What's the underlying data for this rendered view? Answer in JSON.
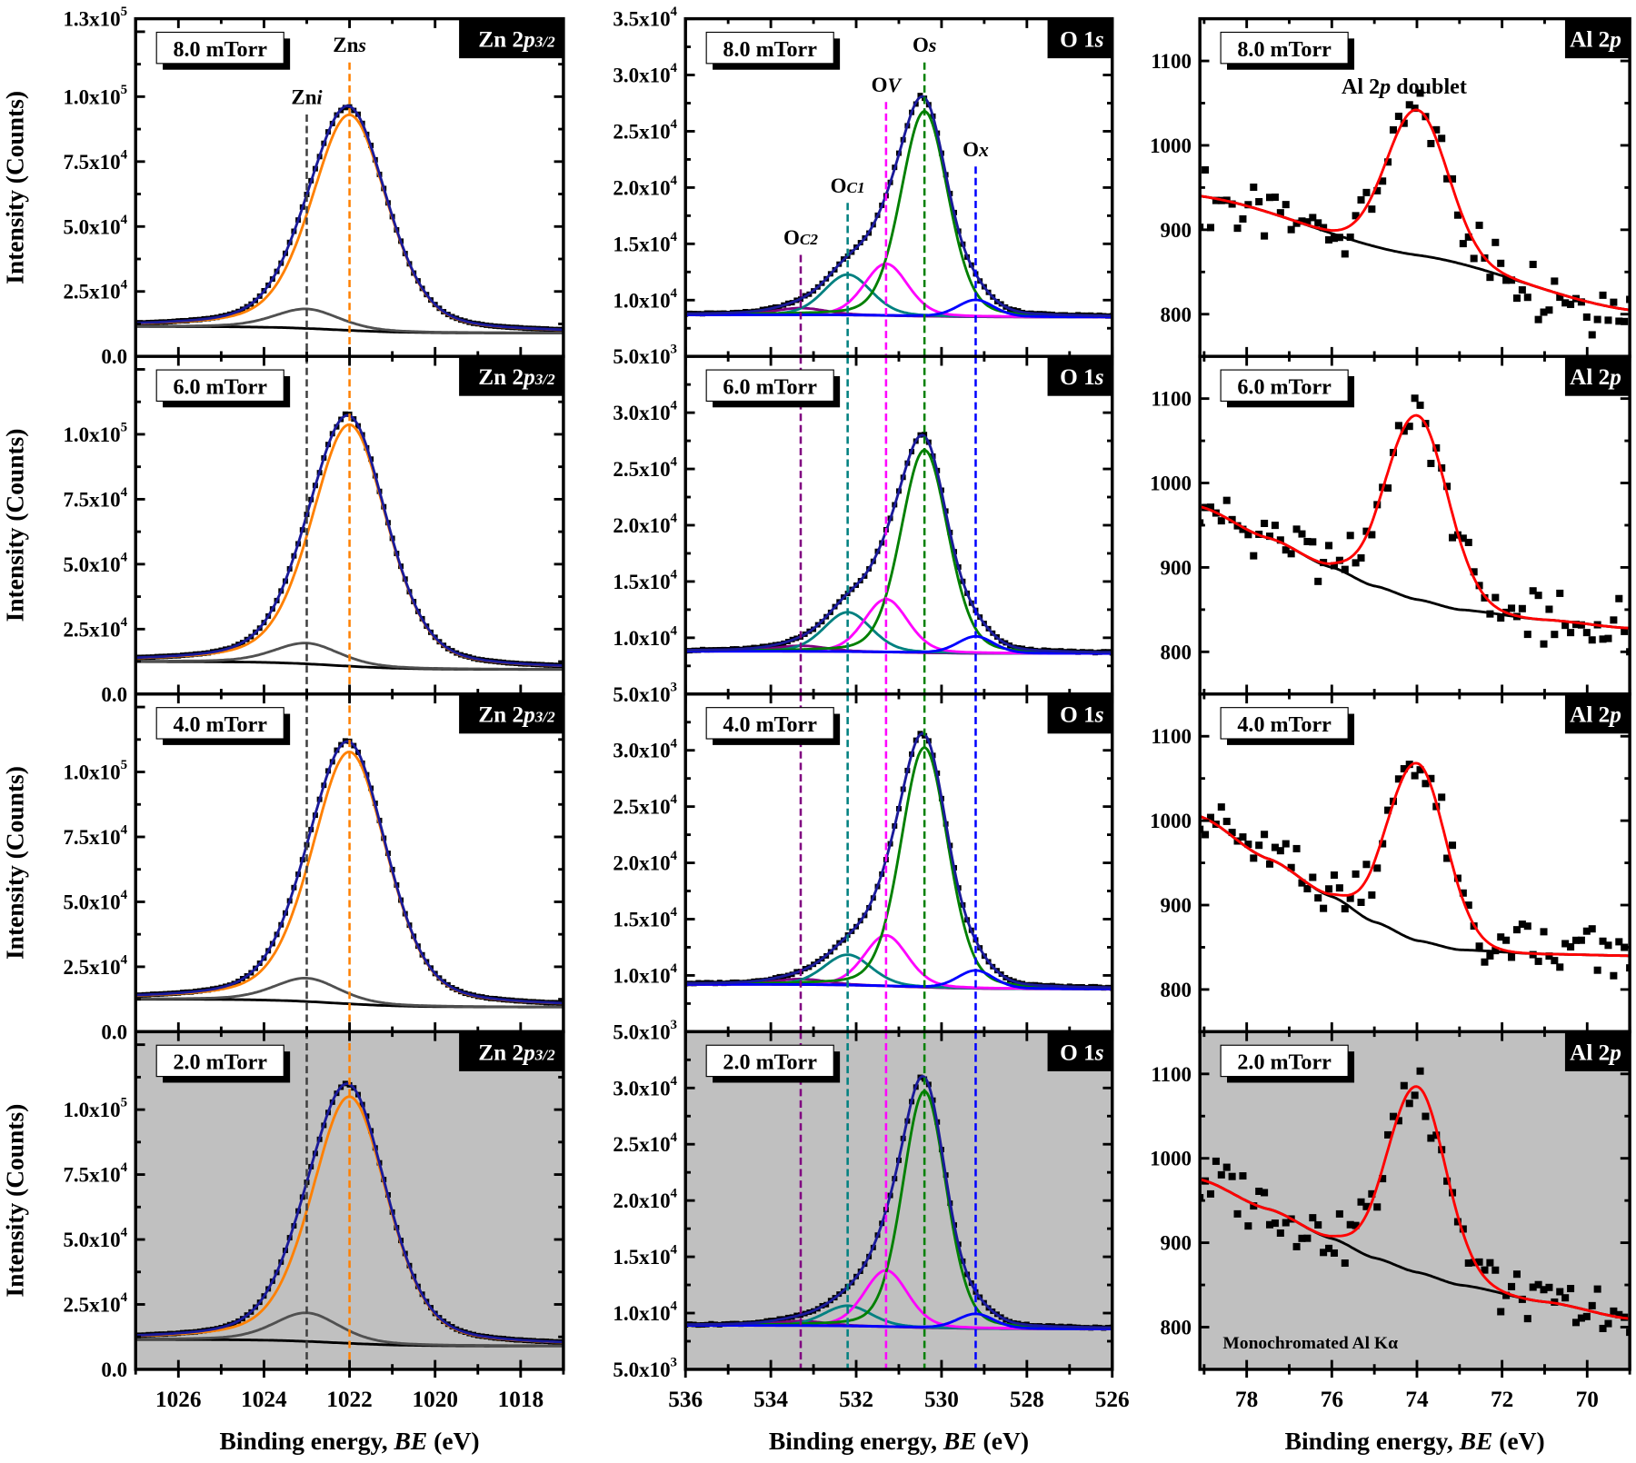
{
  "chart_data": [
    {
      "type": "line",
      "column": "Zn",
      "title": {
        "main": "Zn 2",
        "italic": "p",
        "sub": "3/2"
      },
      "xlabel": {
        "pre": "Binding energy, ",
        "italic": "BE",
        "post": " (eV)"
      },
      "ylabel": "Intensity (Counts)",
      "xlim": [
        1027,
        1017
      ],
      "ylim": [
        0,
        130000
      ],
      "xticks": [
        1026,
        1024,
        1022,
        1020,
        1018
      ],
      "yticks": [
        {
          "v": 0,
          "m": "0.0",
          "e": ""
        },
        {
          "v": 25000,
          "m": "2.5x10",
          "e": "4"
        },
        {
          "v": 50000,
          "m": "5.0x10",
          "e": "4"
        },
        {
          "v": 75000,
          "m": "7.5x10",
          "e": "4"
        },
        {
          "v": 100000,
          "m": "1.0x10",
          "e": "5"
        }
      ],
      "ytop_label": {
        "m": "1.3x10",
        "e": "5"
      },
      "colors": {
        "envelope": "#1a1a9a",
        "data": "#000000",
        "background": "#000000"
      },
      "peak_markers": [
        {
          "main": "Zn",
          "sub": "i",
          "center": 1023.0,
          "color": "#404040"
        },
        {
          "main": "Zn",
          "sub": "s",
          "center": 1022.0,
          "color": "#ff8000"
        }
      ],
      "panels": [
        {
          "pressure": "8.0 mTorr",
          "bg": [
            11500,
            9000
          ],
          "peaks": [
            {
              "center": 1023.0,
              "height": 7500,
              "fwhm": 1.8,
              "color": "#505050"
            },
            {
              "center": 1022.0,
              "height": 83000,
              "fwhm": 2.1,
              "color": "#ff8000"
            }
          ]
        },
        {
          "pressure": "6.0 mTorr",
          "bg": [
            12500,
            9500
          ],
          "peaks": [
            {
              "center": 1023.0,
              "height": 8000,
              "fwhm": 1.8,
              "color": "#505050"
            },
            {
              "center": 1022.0,
              "height": 93000,
              "fwhm": 2.1,
              "color": "#ff8000"
            }
          ]
        },
        {
          "pressure": "4.0 mTorr",
          "bg": [
            12500,
            9500
          ],
          "peaks": [
            {
              "center": 1023.0,
              "height": 9000,
              "fwhm": 1.8,
              "color": "#505050"
            },
            {
              "center": 1022.0,
              "height": 97000,
              "fwhm": 2.1,
              "color": "#ff8000"
            }
          ]
        },
        {
          "pressure": "2.0 mTorr",
          "bg": [
            11500,
            9000
          ],
          "peaks": [
            {
              "center": 1023.0,
              "height": 11000,
              "fwhm": 1.8,
              "color": "#505050"
            },
            {
              "center": 1022.0,
              "height": 95000,
              "fwhm": 2.1,
              "color": "#ff8000"
            }
          ],
          "shaded": true
        }
      ]
    },
    {
      "type": "line",
      "column": "O",
      "title": {
        "main": "O 1",
        "italic": "s",
        "sub": ""
      },
      "xlabel": {
        "pre": "Binding energy, ",
        "italic": "BE",
        "post": " (eV)"
      },
      "xlim": [
        536,
        526
      ],
      "ylim": [
        5000,
        35000
      ],
      "xticks": [
        536,
        534,
        532,
        530,
        528,
        526
      ],
      "yticks": [
        {
          "v": 5000,
          "m": "5.0x10",
          "e": "3"
        },
        {
          "v": 10000,
          "m": "1.0x10",
          "e": "4"
        },
        {
          "v": 15000,
          "m": "1.5x10",
          "e": "4"
        },
        {
          "v": 20000,
          "m": "2.0x10",
          "e": "4"
        },
        {
          "v": 25000,
          "m": "2.5x10",
          "e": "4"
        },
        {
          "v": 30000,
          "m": "3.0x10",
          "e": "4"
        }
      ],
      "ytop_label": {
        "m": "3.5x10",
        "e": "4"
      },
      "colors": {
        "envelope": "#1a1a9a",
        "data": "#000000",
        "background": "#800080"
      },
      "peak_markers": [
        {
          "main": "O",
          "sub": "C2",
          "center": 533.3,
          "color": "#800080"
        },
        {
          "main": "O",
          "sub": "C1",
          "center": 532.2,
          "color": "#008080"
        },
        {
          "main": "O",
          "sub": "V",
          "center": 531.3,
          "color": "#ff00ff"
        },
        {
          "main": "O",
          "sub": "s",
          "center": 530.4,
          "color": "#008000"
        },
        {
          "main": "O",
          "sub": "x",
          "center": 529.2,
          "color": "#0000ff"
        }
      ],
      "panels": [
        {
          "pressure": "8.0 mTorr",
          "bg": [
            8700,
            8500
          ],
          "peaks": [
            {
              "center": 533.3,
              "height": 600,
              "fwhm": 1.4,
              "color": "#800080"
            },
            {
              "center": 532.2,
              "height": 3600,
              "fwhm": 1.3,
              "color": "#008080"
            },
            {
              "center": 531.3,
              "height": 4600,
              "fwhm": 1.2,
              "color": "#ff00ff"
            },
            {
              "center": 530.4,
              "height": 18200,
              "fwhm": 1.3,
              "color": "#008000"
            },
            {
              "center": 529.2,
              "height": 1500,
              "fwhm": 1.0,
              "color": "#0000ff"
            }
          ]
        },
        {
          "pressure": "6.0 mTorr",
          "bg": [
            8800,
            8600
          ],
          "peaks": [
            {
              "center": 533.3,
              "height": 500,
              "fwhm": 1.4,
              "color": "#800080"
            },
            {
              "center": 532.2,
              "height": 3500,
              "fwhm": 1.3,
              "color": "#008080"
            },
            {
              "center": 531.3,
              "height": 4700,
              "fwhm": 1.2,
              "color": "#ff00ff"
            },
            {
              "center": 530.4,
              "height": 18000,
              "fwhm": 1.3,
              "color": "#008000"
            },
            {
              "center": 529.2,
              "height": 1500,
              "fwhm": 1.0,
              "color": "#0000ff"
            }
          ]
        },
        {
          "pressure": "4.0 mTorr",
          "bg": [
            9200,
            8800
          ],
          "peaks": [
            {
              "center": 533.3,
              "height": 500,
              "fwhm": 1.4,
              "color": "#800080"
            },
            {
              "center": 532.2,
              "height": 2700,
              "fwhm": 1.3,
              "color": "#008080"
            },
            {
              "center": 531.3,
              "height": 4500,
              "fwhm": 1.2,
              "color": "#ff00ff"
            },
            {
              "center": 530.4,
              "height": 21300,
              "fwhm": 1.3,
              "color": "#008000"
            },
            {
              "center": 529.2,
              "height": 1600,
              "fwhm": 1.0,
              "color": "#0000ff"
            }
          ]
        },
        {
          "pressure": "2.0 mTorr",
          "bg": [
            8900,
            8600
          ],
          "peaks": [
            {
              "center": 533.3,
              "height": 400,
              "fwhm": 1.4,
              "color": "#800080"
            },
            {
              "center": 532.2,
              "height": 1800,
              "fwhm": 1.3,
              "color": "#008080"
            },
            {
              "center": 531.3,
              "height": 5000,
              "fwhm": 1.2,
              "color": "#ff00ff"
            },
            {
              "center": 530.4,
              "height": 21000,
              "fwhm": 1.2,
              "color": "#008000"
            },
            {
              "center": 529.2,
              "height": 1300,
              "fwhm": 1.0,
              "color": "#0000ff"
            }
          ],
          "shaded": true
        }
      ]
    },
    {
      "type": "scatter",
      "column": "Al",
      "title": {
        "main": "Al 2",
        "italic": "p",
        "sub": ""
      },
      "xlabel": {
        "pre": "Binding energy, ",
        "italic": "BE",
        "post": " (eV)"
      },
      "xlim": [
        79.1,
        69
      ],
      "ylim": [
        750,
        1150
      ],
      "xticks": [
        78,
        76,
        74,
        72,
        70
      ],
      "yticks": [
        {
          "v": 800,
          "m": "800",
          "e": ""
        },
        {
          "v": 900,
          "m": "900",
          "e": ""
        },
        {
          "v": 1000,
          "m": "1000",
          "e": ""
        },
        {
          "v": 1100,
          "m": "1100",
          "e": ""
        }
      ],
      "colors": {
        "fit": "#ff0000",
        "background": "#000000",
        "data": "#000000"
      },
      "annotations": {
        "doublet": {
          "pre": "Al 2",
          "italic": "p",
          "post": " doublet"
        },
        "source": "Monochromated Al Kα"
      },
      "panels": [
        {
          "pressure": "8.0 mTorr",
          "bg": [
            [
              79.1,
              940
            ],
            [
              74,
              870
            ],
            [
              69,
              805
            ]
          ],
          "peaks": [
            {
              "center": 74.0,
              "height": 172,
              "fwhm": 1.7,
              "color": "#ff0000"
            }
          ]
        },
        {
          "pressure": "6.0 mTorr",
          "bg": [
            [
              79.1,
              972
            ],
            [
              77.5,
              935
            ],
            [
              76,
              900
            ],
            [
              75,
              878
            ],
            [
              74,
              862
            ],
            [
              73,
              850
            ],
            [
              71,
              838
            ],
            [
              69,
              828
            ]
          ],
          "peaks": [
            {
              "center": 74.0,
              "height": 218,
              "fwhm": 1.7,
              "color": "#ff0000"
            }
          ]
        },
        {
          "pressure": "4.0 mTorr",
          "bg": [
            [
              79.1,
              1005
            ],
            [
              77.5,
              955
            ],
            [
              76,
              910
            ],
            [
              75,
              880
            ],
            [
              74,
              858
            ],
            [
              73,
              847
            ],
            [
              71,
              842
            ],
            [
              69,
              840
            ]
          ],
          "peaks": [
            {
              "center": 74.0,
              "height": 210,
              "fwhm": 1.6,
              "color": "#ff0000"
            }
          ]
        },
        {
          "pressure": "2.0 mTorr",
          "bg": [
            [
              79.1,
              975
            ],
            [
              77.5,
              940
            ],
            [
              76,
              905
            ],
            [
              75,
              882
            ],
            [
              74,
              865
            ],
            [
              73,
              850
            ],
            [
              71,
              830
            ],
            [
              69,
              810
            ]
          ],
          "peaks": [
            {
              "center": 74.0,
              "height": 220,
              "fwhm": 1.6,
              "color": "#ff0000"
            }
          ],
          "shaded": true
        }
      ]
    }
  ]
}
